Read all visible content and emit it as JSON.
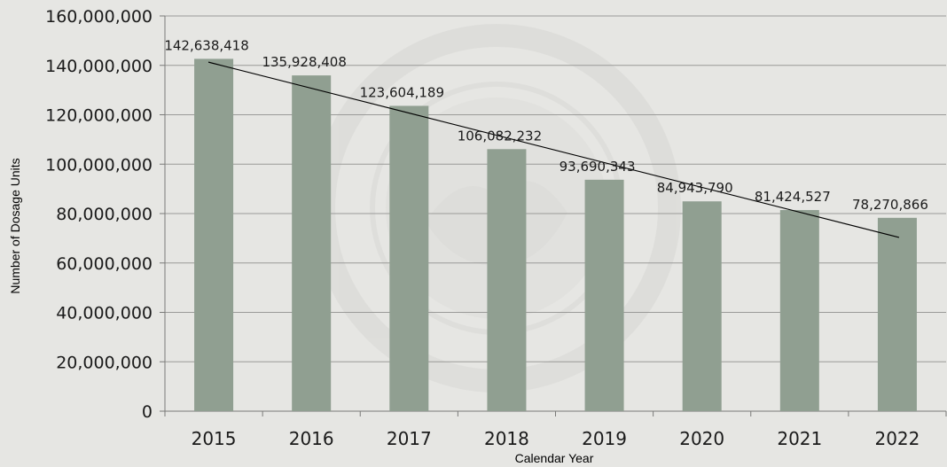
{
  "chart_data": {
    "type": "bar",
    "title": "",
    "xlabel": "Calendar Year",
    "ylabel": "Number of Dosage Units",
    "categories": [
      "2015",
      "2016",
      "2017",
      "2018",
      "2019",
      "2020",
      "2021",
      "2022"
    ],
    "series": [
      {
        "values": [
          142638418,
          135928408,
          123604189,
          106082232,
          93690343,
          84943790,
          81424527,
          78270866
        ]
      }
    ],
    "data_labels": [
      "142,638,418",
      "135,928,408",
      "123,604,189",
      "106,082,232",
      "93,690,343",
      "84,943,790",
      "81,424,527",
      "78,270,866"
    ],
    "ylim": [
      0,
      160000000
    ],
    "yticks": [
      0,
      20000000,
      40000000,
      60000000,
      80000000,
      100000000,
      120000000,
      140000000,
      160000000
    ],
    "ytick_labels": [
      "0",
      "20,000,000",
      "40,000,000",
      "60,000,000",
      "80,000,000",
      "100,000,000",
      "120,000,000",
      "140,000,000",
      "160,000,000"
    ],
    "trendline": {
      "type": "linear",
      "shown": true
    },
    "grid": true,
    "legend": "none",
    "colors": {
      "bar": "#909f91",
      "background": "#e6e6e3",
      "gridline": "#9a9a98",
      "trendline": "#000000"
    }
  }
}
